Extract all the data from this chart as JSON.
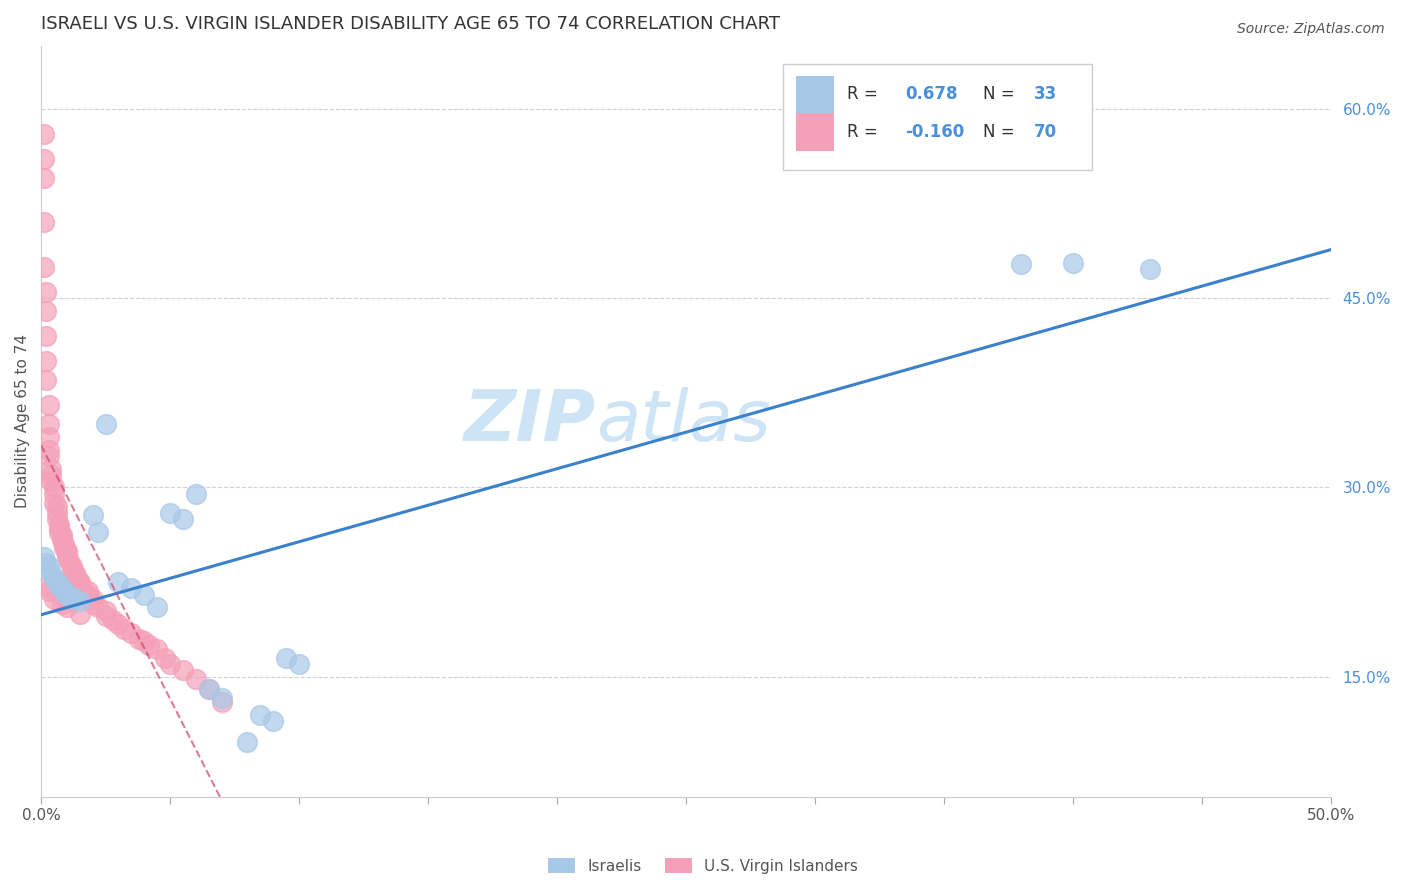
{
  "title": "ISRAELI VS U.S. VIRGIN ISLANDER DISABILITY AGE 65 TO 74 CORRELATION CHART",
  "source": "Source: ZipAtlas.com",
  "ylabel": "Disability Age 65 to 74",
  "right_ytick_labels": [
    "15.0%",
    "30.0%",
    "45.0%",
    "60.0%"
  ],
  "right_ytick_values": [
    0.15,
    0.3,
    0.45,
    0.6
  ],
  "xmin": 0.0,
  "xmax": 0.5,
  "ymin": 0.055,
  "ymax": 0.65,
  "israeli_color": "#a8c8e8",
  "usvi_color": "#f4a0b8",
  "israeli_line_color": "#3a80cc",
  "usvi_line_color": "#cc4466",
  "israeli_R": 0.678,
  "israeli_N": 33,
  "usvi_R": -0.16,
  "usvi_N": 70,
  "israeli_scatter_x": [
    0.001,
    0.002,
    0.003,
    0.004,
    0.005,
    0.006,
    0.007,
    0.008,
    0.009,
    0.01,
    0.012,
    0.013,
    0.015,
    0.02,
    0.022,
    0.025,
    0.03,
    0.035,
    0.04,
    0.045,
    0.05,
    0.055,
    0.06,
    0.065,
    0.07,
    0.08,
    0.085,
    0.09,
    0.095,
    0.1,
    0.38,
    0.4,
    0.43
  ],
  "israeli_scatter_y": [
    0.245,
    0.24,
    0.238,
    0.232,
    0.228,
    0.225,
    0.222,
    0.22,
    0.218,
    0.215,
    0.213,
    0.212,
    0.21,
    0.278,
    0.265,
    0.35,
    0.225,
    0.22,
    0.215,
    0.205,
    0.28,
    0.275,
    0.295,
    0.14,
    0.133,
    0.098,
    0.12,
    0.115,
    0.165,
    0.16,
    0.477,
    0.478,
    0.473
  ],
  "usvi_scatter_x": [
    0.001,
    0.001,
    0.001,
    0.001,
    0.001,
    0.002,
    0.002,
    0.002,
    0.002,
    0.002,
    0.003,
    0.003,
    0.003,
    0.003,
    0.003,
    0.004,
    0.004,
    0.004,
    0.005,
    0.005,
    0.005,
    0.006,
    0.006,
    0.006,
    0.007,
    0.007,
    0.007,
    0.008,
    0.008,
    0.008,
    0.009,
    0.009,
    0.01,
    0.01,
    0.01,
    0.011,
    0.012,
    0.012,
    0.013,
    0.014,
    0.015,
    0.015,
    0.016,
    0.018,
    0.018,
    0.02,
    0.02,
    0.022,
    0.025,
    0.025,
    0.028,
    0.03,
    0.032,
    0.035,
    0.038,
    0.04,
    0.042,
    0.045,
    0.048,
    0.05,
    0.055,
    0.06,
    0.065,
    0.07,
    0.002,
    0.003,
    0.005,
    0.008,
    0.01,
    0.015
  ],
  "usvi_scatter_y": [
    0.58,
    0.56,
    0.545,
    0.51,
    0.475,
    0.455,
    0.44,
    0.42,
    0.4,
    0.385,
    0.365,
    0.35,
    0.34,
    0.33,
    0.325,
    0.315,
    0.31,
    0.305,
    0.3,
    0.295,
    0.288,
    0.285,
    0.28,
    0.275,
    0.27,
    0.268,
    0.265,
    0.262,
    0.26,
    0.258,
    0.255,
    0.252,
    0.25,
    0.248,
    0.245,
    0.242,
    0.238,
    0.235,
    0.232,
    0.228,
    0.225,
    0.222,
    0.22,
    0.218,
    0.215,
    0.212,
    0.208,
    0.205,
    0.202,
    0.198,
    0.195,
    0.192,
    0.188,
    0.185,
    0.18,
    0.178,
    0.175,
    0.172,
    0.165,
    0.16,
    0.155,
    0.148,
    0.14,
    0.13,
    0.222,
    0.218,
    0.212,
    0.208,
    0.205,
    0.2
  ],
  "background_color": "#ffffff",
  "grid_color": "#cccccc",
  "watermark_text": "ZIP",
  "watermark_text2": "atlas",
  "watermark_color": "#cce4f5",
  "title_fontsize": 13,
  "axis_label_fontsize": 11,
  "tick_fontsize": 11,
  "source_fontsize": 10,
  "legend_r_color": "#4a90d9",
  "legend_n_color": "#4a90d9"
}
